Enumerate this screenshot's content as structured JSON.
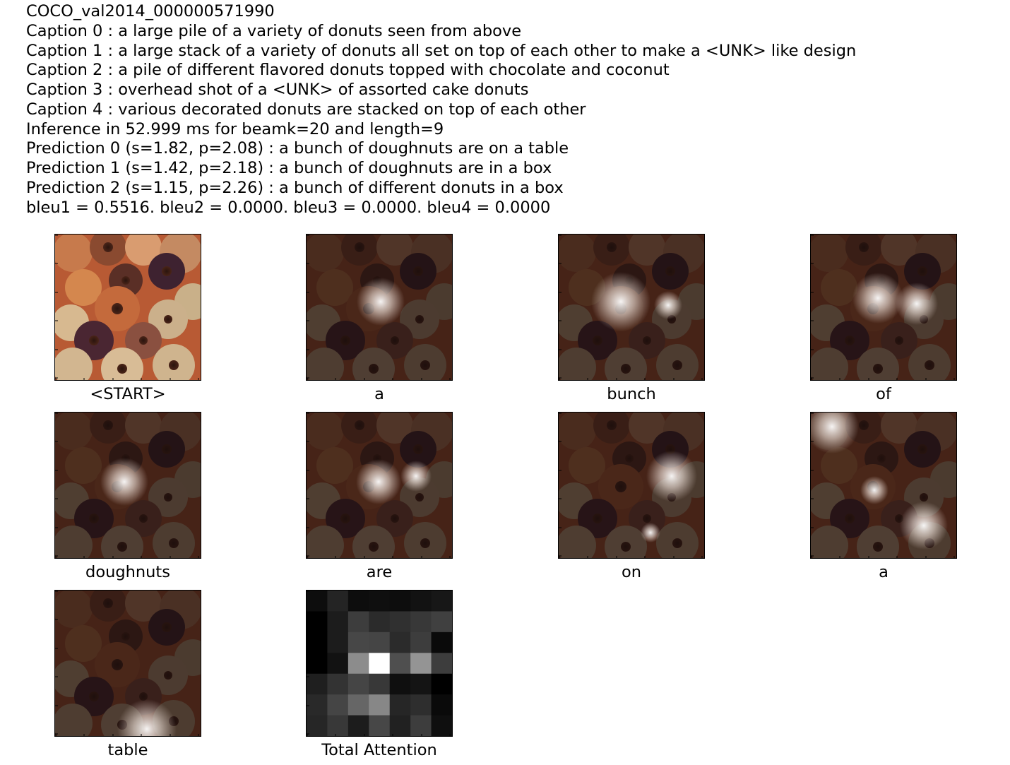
{
  "header": {
    "image_id": "COCO_val2014_000000571990",
    "captions": [
      "Caption 0 : a large pile of a variety of donuts seen from above",
      "Caption 1 : a large stack of a variety of donuts all set on top of each other to make a <UNK> like design",
      "Caption 2 : a pile of different flavored donuts topped with chocolate and coconut",
      "Caption 3 : overhead shot of a <UNK> of assorted cake donuts",
      "Caption 4 : various decorated donuts are stacked on top of each other"
    ],
    "inference": "Inference in 52.999 ms for beamk=20 and length=9",
    "predictions": [
      "Prediction 0 (s=1.82, p=2.08) : a bunch of doughnuts are on a table",
      "Prediction 1 (s=1.42, p=2.18) : a bunch of doughnuts are in a box",
      "Prediction 2 (s=1.15, p=2.26) : a bunch of different donuts in a box"
    ],
    "bleu": "bleu1 = 0.5516. bleu2 = 0.0000. bleu3 = 0.0000. bleu4 = 0.0000"
  },
  "panels": [
    {
      "word": "<START>",
      "kind": "original"
    },
    {
      "word": "a",
      "kind": "attention"
    },
    {
      "word": "bunch",
      "kind": "attention"
    },
    {
      "word": "of",
      "kind": "attention"
    },
    {
      "word": "doughnuts",
      "kind": "attention"
    },
    {
      "word": "are",
      "kind": "attention"
    },
    {
      "word": "on",
      "kind": "attention"
    },
    {
      "word": "a",
      "kind": "attention"
    },
    {
      "word": "table",
      "kind": "attention"
    },
    {
      "word": "Total Attention",
      "kind": "total-attention-grid"
    }
  ],
  "total_attention_grid": [
    [
      0.05,
      0.14,
      0.05,
      0.06,
      0.05,
      0.07,
      0.09
    ],
    [
      0.0,
      0.11,
      0.24,
      0.17,
      0.19,
      0.22,
      0.25
    ],
    [
      0.0,
      0.11,
      0.28,
      0.27,
      0.17,
      0.24,
      0.04
    ],
    [
      0.0,
      0.07,
      0.55,
      1.0,
      0.31,
      0.58,
      0.24
    ],
    [
      0.12,
      0.2,
      0.27,
      0.22,
      0.06,
      0.08,
      0.0
    ],
    [
      0.16,
      0.27,
      0.4,
      0.53,
      0.15,
      0.18,
      0.04
    ],
    [
      0.15,
      0.22,
      0.11,
      0.28,
      0.13,
      0.24,
      0.06
    ]
  ]
}
